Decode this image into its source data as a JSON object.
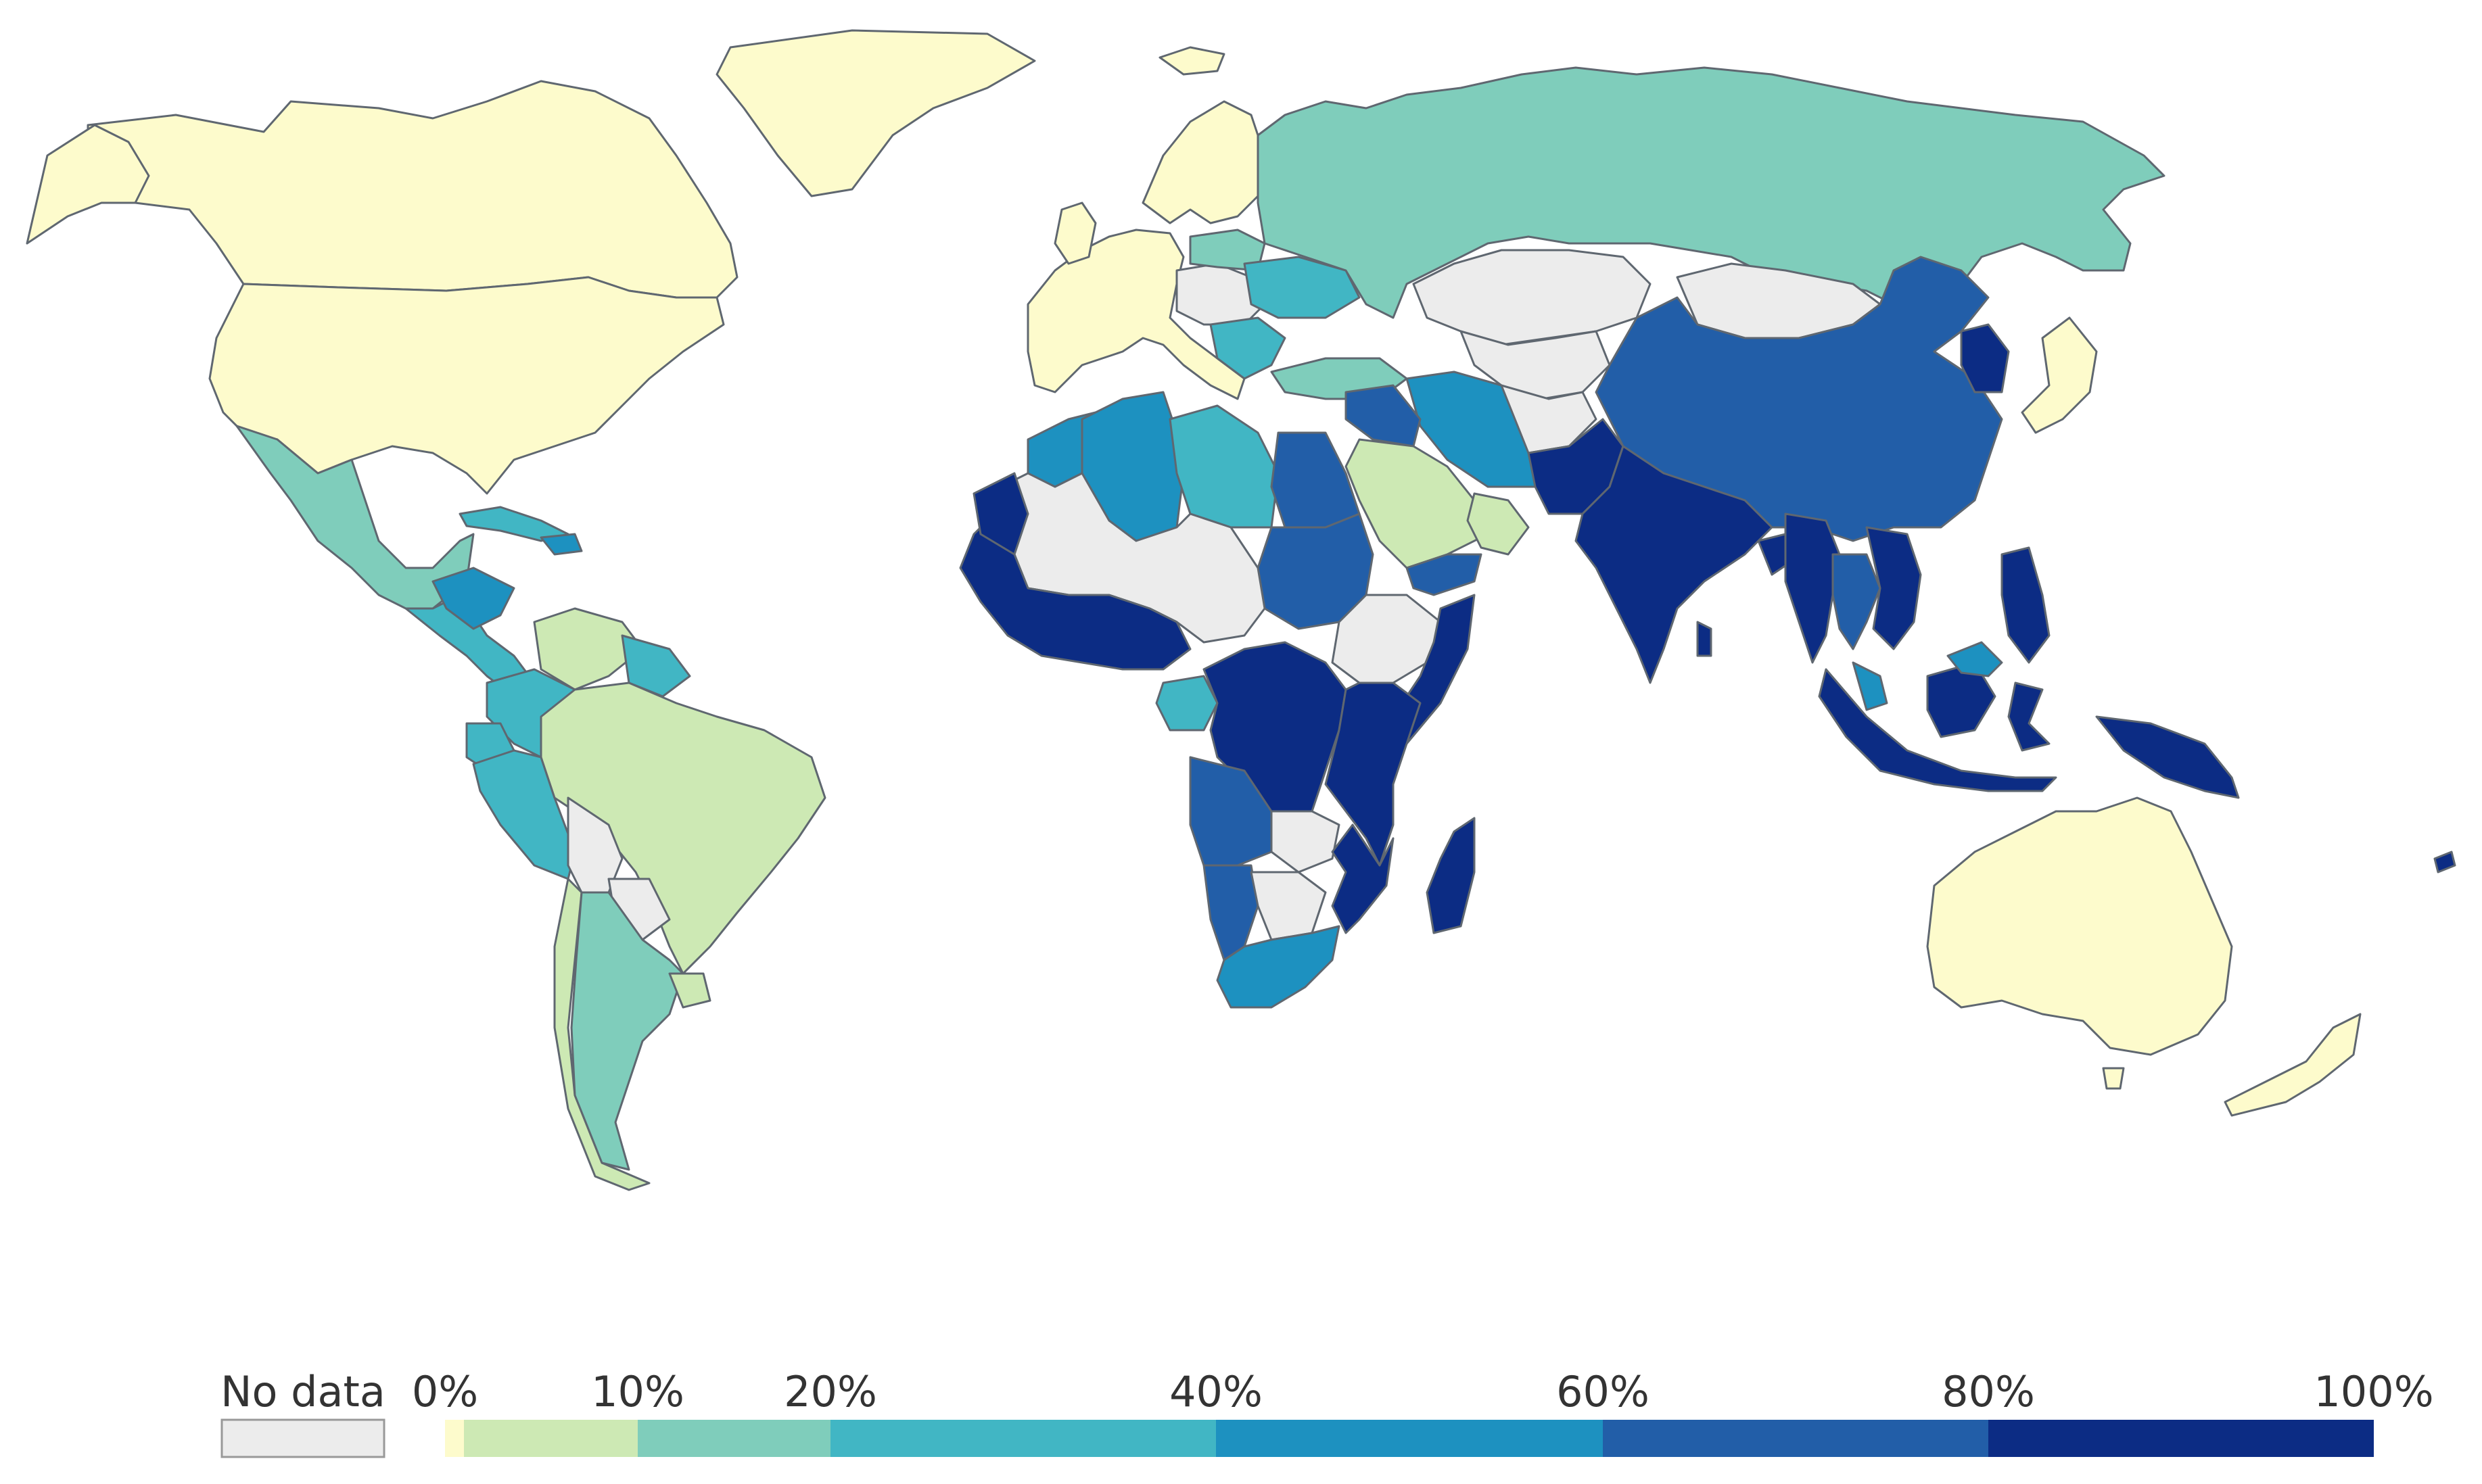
{
  "colors": {
    "no_data": "#ececec",
    "bin_0_1": "#fdfbcc",
    "bin_1_10": "#cde9b4",
    "bin_10_20": "#7fcdbb",
    "bin_20_40": "#41b6c4",
    "bin_40_60": "#1d91c0",
    "bin_60_80": "#225ea8",
    "bin_80_100": "#0c2c84",
    "border": "#5f6770"
  },
  "legend": {
    "no_data_label": "No data",
    "ticks": [
      "0%",
      "10%",
      "20%",
      "40%",
      "60%",
      "80%",
      "100%"
    ]
  },
  "regions": [
    {
      "name": "Canada",
      "bin": "bin_0_1"
    },
    {
      "name": "United States",
      "bin": "bin_0_1"
    },
    {
      "name": "Greenland",
      "bin": "bin_0_1"
    },
    {
      "name": "Mexico",
      "bin": "bin_10_20"
    },
    {
      "name": "Central America",
      "bin": "bin_20_40"
    },
    {
      "name": "Honduras",
      "bin": "bin_40_60"
    },
    {
      "name": "Cuba",
      "bin": "bin_20_40"
    },
    {
      "name": "Haiti",
      "bin": "bin_40_60"
    },
    {
      "name": "Venezuela",
      "bin": "bin_1_10"
    },
    {
      "name": "Colombia",
      "bin": "bin_20_40"
    },
    {
      "name": "Guyana",
      "bin": "bin_20_40"
    },
    {
      "name": "Ecuador",
      "bin": "bin_20_40"
    },
    {
      "name": "Peru",
      "bin": "bin_20_40"
    },
    {
      "name": "Brazil",
      "bin": "bin_1_10"
    },
    {
      "name": "Bolivia",
      "bin": "no_data"
    },
    {
      "name": "Paraguay",
      "bin": "no_data"
    },
    {
      "name": "Chile",
      "bin": "bin_1_10"
    },
    {
      "name": "Argentina",
      "bin": "bin_10_20"
    },
    {
      "name": "Uruguay",
      "bin": "bin_1_10"
    },
    {
      "name": "Western Europe",
      "bin": "bin_0_1"
    },
    {
      "name": "Scandinavia",
      "bin": "bin_0_1"
    },
    {
      "name": "Iceland",
      "bin": "bin_0_1"
    },
    {
      "name": "Central Europe",
      "bin": "no_data"
    },
    {
      "name": "Poland",
      "bin": "bin_10_20"
    },
    {
      "name": "Ukraine",
      "bin": "bin_20_40"
    },
    {
      "name": "Balkans",
      "bin": "bin_20_40"
    },
    {
      "name": "Turkey",
      "bin": "bin_10_20"
    },
    {
      "name": "Russia",
      "bin": "bin_10_20"
    },
    {
      "name": "Kazakhstan",
      "bin": "no_data"
    },
    {
      "name": "Central Asia",
      "bin": "no_data"
    },
    {
      "name": "Mongolia",
      "bin": "no_data"
    },
    {
      "name": "China",
      "bin": "bin_60_80"
    },
    {
      "name": "Korea",
      "bin": "bin_80_100"
    },
    {
      "name": "Japan",
      "bin": "bin_0_1"
    },
    {
      "name": "Iran",
      "bin": "bin_40_60"
    },
    {
      "name": "Iraq",
      "bin": "bin_60_80"
    },
    {
      "name": "Saudi Arabia",
      "bin": "bin_1_10"
    },
    {
      "name": "Oman",
      "bin": "bin_1_10"
    },
    {
      "name": "Yemen",
      "bin": "bin_60_80"
    },
    {
      "name": "Afghanistan",
      "bin": "no_data"
    },
    {
      "name": "Pakistan",
      "bin": "bin_80_100"
    },
    {
      "name": "India",
      "bin": "bin_80_100"
    },
    {
      "name": "Sri Lanka",
      "bin": "bin_80_100"
    },
    {
      "name": "Bangladesh",
      "bin": "bin_80_100"
    },
    {
      "name": "Myanmar",
      "bin": "bin_80_100"
    },
    {
      "name": "Thailand",
      "bin": "bin_60_80"
    },
    {
      "name": "Vietnam",
      "bin": "bin_80_100"
    },
    {
      "name": "Malaysia",
      "bin": "bin_40_60"
    },
    {
      "name": "Indonesia",
      "bin": "bin_80_100"
    },
    {
      "name": "Philippines",
      "bin": "bin_80_100"
    },
    {
      "name": "Papua New Guinea",
      "bin": "bin_80_100"
    },
    {
      "name": "Australia",
      "bin": "bin_0_1"
    },
    {
      "name": "New Zealand",
      "bin": "bin_0_1"
    },
    {
      "name": "Morocco",
      "bin": "bin_40_60"
    },
    {
      "name": "Algeria",
      "bin": "bin_40_60"
    },
    {
      "name": "Libya",
      "bin": "bin_20_40"
    },
    {
      "name": "Egypt",
      "bin": "bin_60_80"
    },
    {
      "name": "Sudan",
      "bin": "bin_60_80"
    },
    {
      "name": "Sahel",
      "bin": "no_data"
    },
    {
      "name": "West Africa",
      "bin": "bin_80_100"
    },
    {
      "name": "Central Africa",
      "bin": "bin_80_100"
    },
    {
      "name": "Gabon",
      "bin": "bin_20_40"
    },
    {
      "name": "Horn of Africa",
      "bin": "no_data"
    },
    {
      "name": "Somalia",
      "bin": "bin_80_100"
    },
    {
      "name": "East Africa",
      "bin": "bin_80_100"
    },
    {
      "name": "Angola",
      "bin": "bin_60_80"
    },
    {
      "name": "Namibia",
      "bin": "bin_60_80"
    },
    {
      "name": "Zambia",
      "bin": "no_data"
    },
    {
      "name": "Botswana",
      "bin": "no_data"
    },
    {
      "name": "Mozambique",
      "bin": "bin_80_100"
    },
    {
      "name": "South Africa",
      "bin": "bin_40_60"
    },
    {
      "name": "Madagascar",
      "bin": "bin_80_100"
    }
  ]
}
